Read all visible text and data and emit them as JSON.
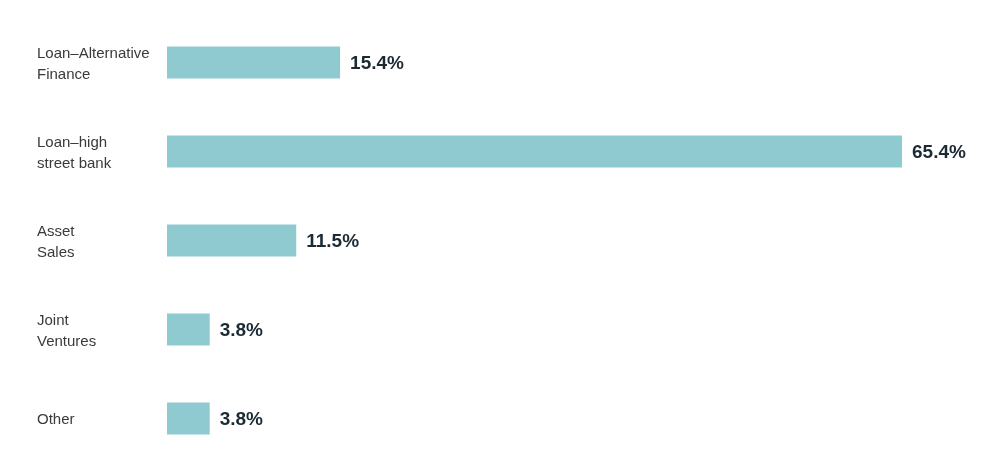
{
  "chart_data": {
    "type": "bar",
    "orientation": "horizontal",
    "categories": [
      "Loan–Alternative\nFinance",
      "Loan–high\nstreet bank",
      "Asset\nSales",
      "Joint\nVentures",
      "Other"
    ],
    "values": [
      15.4,
      65.4,
      11.5,
      3.8,
      3.8
    ],
    "value_labels": [
      "15.4%",
      "65.4%",
      "11.5%",
      "3.8%",
      "3.8%"
    ],
    "color": "#8fcad1"
  }
}
